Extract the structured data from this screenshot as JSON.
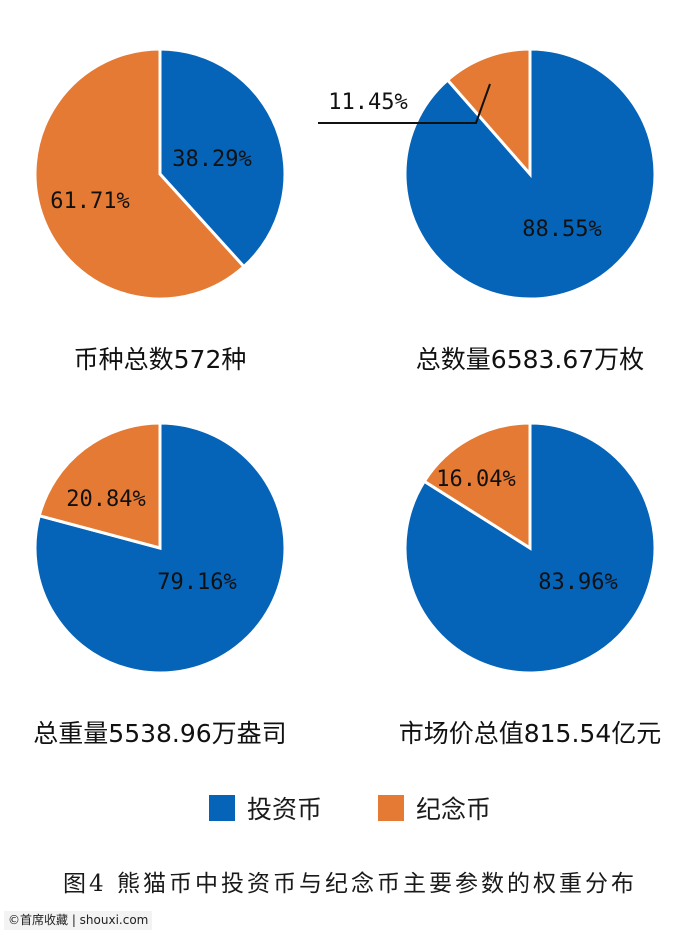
{
  "colors": {
    "investment": "#0563B8",
    "commemorative": "#E47A33"
  },
  "chart_data": [
    {
      "type": "pie",
      "title": "币种总数572种",
      "series": [
        {
          "name": "投资币",
          "value": 38.29,
          "label": "38.29%"
        },
        {
          "name": "纪念币",
          "value": 61.71,
          "label": "61.71%"
        }
      ]
    },
    {
      "type": "pie",
      "title": "总数量6583.67万枚",
      "series": [
        {
          "name": "投资币",
          "value": 88.55,
          "label": "88.55%"
        },
        {
          "name": "纪念币",
          "value": 11.45,
          "label": "11.45%"
        }
      ]
    },
    {
      "type": "pie",
      "title": "总重量5538.96万盎司",
      "series": [
        {
          "name": "投资币",
          "value": 79.16,
          "label": "79.16%"
        },
        {
          "name": "纪念币",
          "value": 20.84,
          "label": "20.84%"
        }
      ]
    },
    {
      "type": "pie",
      "title": "市场价总值815.54亿元",
      "series": [
        {
          "name": "投资币",
          "value": 83.96,
          "label": "83.96%"
        },
        {
          "name": "纪念币",
          "value": 16.04,
          "label": "16.04%"
        }
      ]
    }
  ],
  "legend": [
    {
      "key": "investment",
      "label": "投资币"
    },
    {
      "key": "commemorative",
      "label": "纪念币"
    }
  ],
  "caption": "图4 熊猫币中投资币与纪念币主要参数的权重分布",
  "watermark": "©首席收藏 | shouxi.com"
}
